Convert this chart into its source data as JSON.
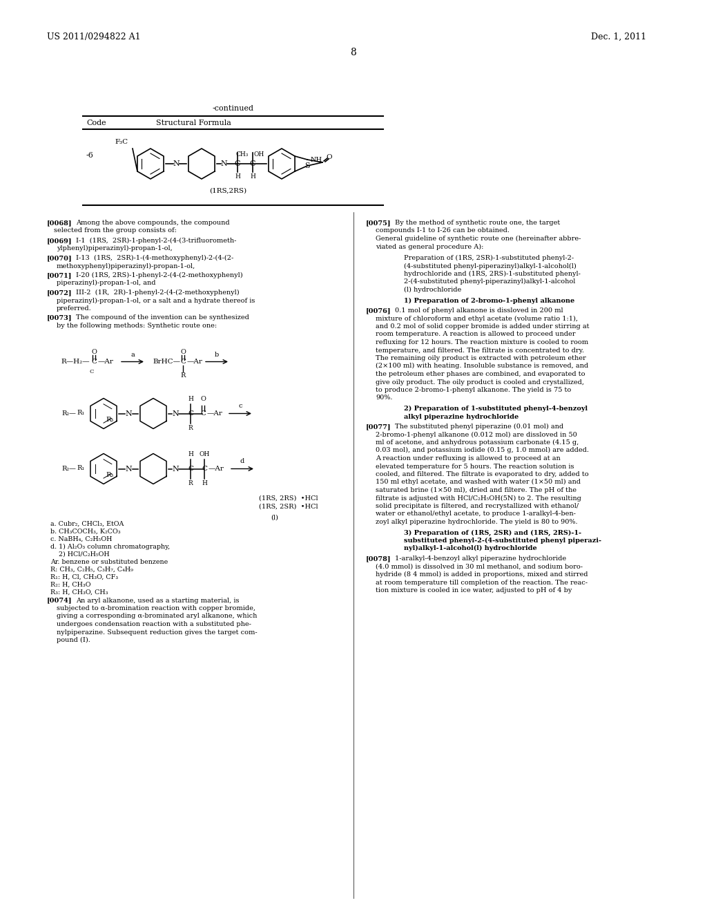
{
  "header_left": "US 2011/0294822 A1",
  "header_right": "Dec. 1, 2011",
  "page_number": "8",
  "background_color": "#ffffff",
  "text_color": "#000000",
  "continued_label": "-continued",
  "table_code_label": "Code",
  "table_formula_label": "Structural Formula",
  "compound_code": "-6",
  "compound_stereo": "(1RS,2RS)",
  "rxn_scheme_notes": [
    "a. Cubr₂, CHCl₃, EtOA",
    "b. CH₃COCH₃, K₂CO₃",
    "c. NaBH₄, C₂H₅OH",
    "d. 1) Al₂O₃ column chromatography,",
    "    2) HCl/C₂H₅OH",
    "Ar. benzene or substituted benzene",
    "R: CH₃, C₂H₅, C₃H₇, C₄H₉",
    "R₁: H, Cl, CH₃O, CF₃",
    "R₂: H, CH₃O",
    "R₃: H, CH₃O, CH₃"
  ]
}
